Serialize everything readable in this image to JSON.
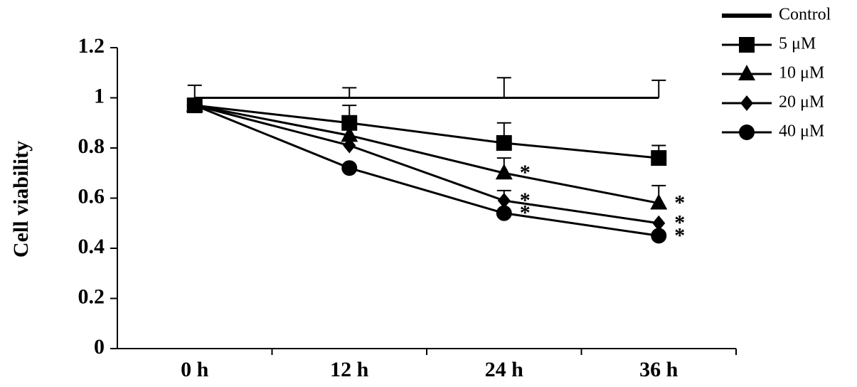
{
  "chart_data": {
    "type": "line",
    "y_label": "Cell viability",
    "categories": [
      "0 h",
      "12 h",
      "24 h",
      "36 h"
    ],
    "ylim": [
      0,
      1.2
    ],
    "yticks": [
      0,
      0.2,
      0.4,
      0.6,
      0.8,
      1,
      1.2
    ],
    "series": [
      {
        "name": "Control",
        "color": "#000000",
        "marker": "none",
        "values": [
          1,
          1,
          1,
          1
        ],
        "errors": [
          0.05,
          0.04,
          0.08,
          0.07
        ]
      },
      {
        "name": "5 μM",
        "color": "#000000",
        "marker": "square",
        "values": [
          0.97,
          0.9,
          0.82,
          0.76
        ],
        "errors": [
          null,
          0.07,
          0.08,
          0.05
        ]
      },
      {
        "name": "10 μM",
        "color": "#000000",
        "marker": "triangle",
        "values": [
          0.97,
          0.85,
          0.7,
          0.58
        ],
        "errors": [
          null,
          null,
          0.06,
          0.07
        ]
      },
      {
        "name": "20 μM",
        "color": "#000000",
        "marker": "diamond",
        "values": [
          0.97,
          0.81,
          0.59,
          0.5
        ],
        "errors": [
          null,
          null,
          0.04,
          null
        ]
      },
      {
        "name": "40 μM",
        "color": "#000000",
        "marker": "circle",
        "values": [
          0.97,
          0.72,
          0.54,
          0.45
        ],
        "errors": [
          null,
          null,
          null,
          null
        ]
      }
    ],
    "annotations": [
      {
        "text": "*",
        "category": "24 h",
        "series": "10 μM"
      },
      {
        "text": "*",
        "category": "24 h",
        "series": "20 μM"
      },
      {
        "text": "*",
        "category": "24 h",
        "series": "40 μM"
      },
      {
        "text": "*",
        "category": "36 h",
        "series": "10 μM"
      },
      {
        "text": "*",
        "category": "36 h",
        "series": "20 μM"
      },
      {
        "text": "*",
        "category": "36 h",
        "series": "40 μM"
      }
    ]
  }
}
